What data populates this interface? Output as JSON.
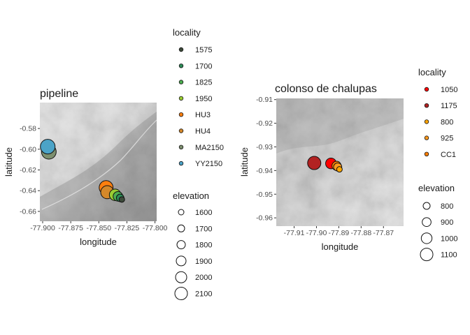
{
  "chart_data": [
    {
      "type": "scatter",
      "title": "pipeline",
      "xlabel": "longitude",
      "ylabel": "latitude",
      "xlim": [
        -77.9025,
        -77.7985
      ],
      "ylim": [
        -0.6695,
        -0.555
      ],
      "x_ticks": [
        -77.9,
        -77.875,
        -77.85,
        -77.825,
        -77.8
      ],
      "x_tick_labels": [
        "-77.900",
        "-77.875",
        "-77.850",
        "-77.825",
        "-77.800"
      ],
      "y_ticks": [
        -0.58,
        -0.6,
        -0.62,
        -0.64,
        -0.66
      ],
      "y_tick_labels": [
        "-0.58",
        "-0.60",
        "-0.62",
        "-0.64",
        "-0.66"
      ],
      "grid": false,
      "background": "grayscale terrain hillshade map",
      "legend_locality_title": "locality",
      "legend_elevation_title": "elevation",
      "legend_placement": "right",
      "localities": [
        {
          "name": "1575",
          "color": "#3d4a3a"
        },
        {
          "name": "1700",
          "color": "#2e8b57"
        },
        {
          "name": "1825",
          "color": "#4caf50"
        },
        {
          "name": "1950",
          "color": "#9acd32"
        },
        {
          "name": "HU3",
          "color": "#ff7f0e"
        },
        {
          "name": "HU4",
          "color": "#d4882a"
        },
        {
          "name": "MA2150",
          "color": "#7d8f6f"
        },
        {
          "name": "YY2150",
          "color": "#4ba3c7"
        }
      ],
      "elevation_legend": [
        1600,
        1700,
        1800,
        1900,
        2000,
        2100
      ],
      "elevation_range": [
        1575,
        2150
      ],
      "points": [
        {
          "locality": "1575",
          "x": -77.8295,
          "y": -0.6485,
          "elevation": 1575
        },
        {
          "locality": "1700",
          "x": -77.831,
          "y": -0.647,
          "elevation": 1700
        },
        {
          "locality": "1825",
          "x": -77.833,
          "y": -0.6455,
          "elevation": 1825
        },
        {
          "locality": "1950",
          "x": -77.8355,
          "y": -0.644,
          "elevation": 1950
        },
        {
          "locality": "HU3",
          "x": -77.8435,
          "y": -0.637,
          "elevation": 2100
        },
        {
          "locality": "HU4",
          "x": -77.8425,
          "y": -0.6415,
          "elevation": 2050
        },
        {
          "locality": "MA2150",
          "x": -77.8945,
          "y": -0.6025,
          "elevation": 2150
        },
        {
          "locality": "YY2150",
          "x": -77.8955,
          "y": -0.5975,
          "elevation": 2150
        }
      ]
    },
    {
      "type": "scatter",
      "title": "colonso de chalupas",
      "xlabel": "longitude",
      "ylabel": "latitude",
      "xlim": [
        -77.918,
        -77.861
      ],
      "ylim": [
        -0.9635,
        -0.9095
      ],
      "x_ticks": [
        -77.91,
        -77.9,
        -77.89,
        -77.88,
        -77.87
      ],
      "x_tick_labels": [
        "-77.91",
        "-77.90",
        "-77.89",
        "-77.88",
        "-77.87"
      ],
      "y_ticks": [
        -0.91,
        -0.92,
        -0.93,
        -0.94,
        -0.95,
        -0.96
      ],
      "y_tick_labels": [
        "-0.91",
        "-0.92",
        "-0.93",
        "-0.94",
        "-0.95",
        "-0.96"
      ],
      "grid": false,
      "background": "grayscale terrain hillshade map",
      "legend_locality_title": "locality",
      "legend_elevation_title": "elevation",
      "legend_placement": "right",
      "localities": [
        {
          "name": "1050",
          "color": "#ff0000"
        },
        {
          "name": "1175",
          "color": "#b22222"
        },
        {
          "name": "800",
          "color": "#ffa500"
        },
        {
          "name": "925",
          "color": "#ff9a1f"
        },
        {
          "name": "CC1",
          "color": "#ff7f00"
        }
      ],
      "elevation_legend": [
        800,
        900,
        1000,
        1100
      ],
      "elevation_range": [
        800,
        1175
      ],
      "points": [
        {
          "locality": "800",
          "x": -77.8897,
          "y": -0.9395,
          "elevation": 800
        },
        {
          "locality": "925",
          "x": -77.8905,
          "y": -0.9385,
          "elevation": 925
        },
        {
          "locality": "CC1",
          "x": -77.891,
          "y": -0.938,
          "elevation": 975
        },
        {
          "locality": "1050",
          "x": -77.8935,
          "y": -0.937,
          "elevation": 1050
        },
        {
          "locality": "1175",
          "x": -77.901,
          "y": -0.9368,
          "elevation": 1175
        }
      ]
    }
  ]
}
